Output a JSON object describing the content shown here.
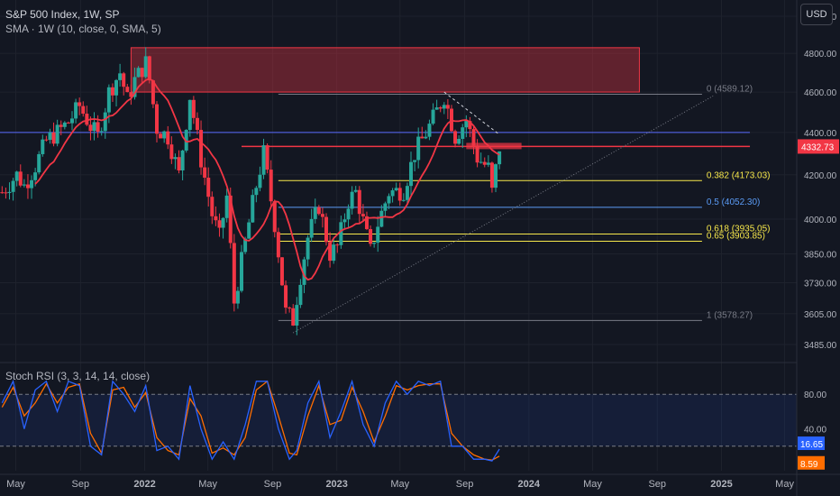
{
  "header": {
    "title": "S&P 500 Index, 1W, SP",
    "sma_label": "SMA · 1W (10, close, 0, SMA, 5)",
    "stoch_label": "Stoch RSI (3, 3, 14, 14, close)",
    "currency": "USD"
  },
  "colors": {
    "background": "#131722",
    "up": "#26a69a",
    "down": "#f23645",
    "sma": "#f23645",
    "fib_yellow": "#f7e84b",
    "fib_blue": "#5b9cf6",
    "fib_gray": "#787b86",
    "stoch_k": "#2962ff",
    "stoch_d": "#ff6d00"
  },
  "chart_data": {
    "type": "candlestick",
    "ylim": [
      3430,
      5090
    ],
    "y_ticks": [
      "5000.00",
      "4800.00",
      "4600.00",
      "4400.00",
      "4200.00",
      "4000.00",
      "3850.00",
      "3730.00",
      "3605.00",
      "3485.00"
    ],
    "y_tick_values": [
      5000,
      4800,
      4600,
      4400,
      4200,
      4000,
      3850,
      3730,
      3605,
      3485
    ],
    "x_ticks": [
      "May",
      "Sep",
      "2022",
      "May",
      "Sep",
      "2023",
      "May",
      "Sep",
      "2024",
      "May",
      "Sep",
      "2025",
      "May"
    ],
    "x_tick_dates": [
      "2021-05-01",
      "2021-09-01",
      "2022-01-01",
      "2022-05-01",
      "2022-09-01",
      "2023-01-01",
      "2023-05-01",
      "2023-09-01",
      "2024-01-01",
      "2024-05-01",
      "2024-09-01",
      "2025-01-01",
      "2025-05-01"
    ],
    "x_range": [
      "2021-04-01",
      "2025-05-24"
    ],
    "last_price": "4332.73",
    "last_price_value": 4332.73,
    "close_path": [
      [
        "2021-04-05",
        4120
      ],
      [
        "2021-05-03",
        4200
      ],
      [
        "2021-05-17",
        4150
      ],
      [
        "2021-06-07",
        4240
      ],
      [
        "2021-06-28",
        4360
      ],
      [
        "2021-07-19",
        4400
      ],
      [
        "2021-08-09",
        4450
      ],
      [
        "2021-08-30",
        4530
      ],
      [
        "2021-09-20",
        4430
      ],
      [
        "2021-10-04",
        4380
      ],
      [
        "2021-10-25",
        4600
      ],
      [
        "2021-11-15",
        4700
      ],
      [
        "2021-11-29",
        4560
      ],
      [
        "2021-12-13",
        4660
      ],
      [
        "2022-01-03",
        4750
      ],
      [
        "2022-01-10",
        4660
      ],
      [
        "2022-01-24",
        4420
      ],
      [
        "2022-02-14",
        4380
      ],
      [
        "2022-03-07",
        4200
      ],
      [
        "2022-03-28",
        4580
      ],
      [
        "2022-04-18",
        4270
      ],
      [
        "2022-05-09",
        4020
      ],
      [
        "2022-05-23",
        3920
      ],
      [
        "2022-06-06",
        4100
      ],
      [
        "2022-06-20",
        3650
      ],
      [
        "2022-07-11",
        3900
      ],
      [
        "2022-08-01",
        4150
      ],
      [
        "2022-08-15",
        4300
      ],
      [
        "2022-09-05",
        3980
      ],
      [
        "2022-09-26",
        3610
      ],
      [
        "2022-10-10",
        3580
      ],
      [
        "2022-10-24",
        3760
      ],
      [
        "2022-11-07",
        3920
      ],
      [
        "2022-11-28",
        4060
      ],
      [
        "2022-12-19",
        3850
      ],
      [
        "2023-01-02",
        3880
      ],
      [
        "2023-01-23",
        4080
      ],
      [
        "2023-02-06",
        4120
      ],
      [
        "2023-03-06",
        3860
      ],
      [
        "2023-03-20",
        3980
      ],
      [
        "2023-04-10",
        4120
      ],
      [
        "2023-05-08",
        4130
      ],
      [
        "2023-05-29",
        4300
      ],
      [
        "2023-06-26",
        4430
      ],
      [
        "2023-07-24",
        4580
      ],
      [
        "2023-08-14",
        4380
      ],
      [
        "2023-09-04",
        4460
      ],
      [
        "2023-09-25",
        4280
      ],
      [
        "2023-10-16",
        4230
      ],
      [
        "2023-10-23",
        4120
      ],
      [
        "2023-11-06",
        4330
      ]
    ],
    "zones": [
      {
        "from": "2021-12-06",
        "to": "2024-07-29",
        "high": 4830,
        "low": 4600,
        "color": "#f23645"
      }
    ],
    "horizontal_lines": [
      {
        "y": 4400,
        "from": "2021-04-01",
        "to": "2025-02-24",
        "color": "#5b6cff"
      },
      {
        "y": 4332.73,
        "from": "2022-07-04",
        "to": "2025-02-24",
        "color": "#f23645"
      }
    ],
    "trend_lines": [
      {
        "from": [
          "2022-10-10",
          3530
        ],
        "to": [
          "2024-12-16",
          4580
        ],
        "color": "#787b86",
        "dash": "1,2"
      },
      {
        "from": [
          "2023-07-24",
          4600
        ],
        "to": [
          "2023-11-06",
          4390
        ],
        "color": "#d1d4dc",
        "dash": "3,3"
      }
    ],
    "fib_levels": [
      {
        "label": "0 (4589.12)",
        "value": 4589.12,
        "color": "#787b86"
      },
      {
        "label": "0.382 (4173.03)",
        "value": 4173.03,
        "color": "#f7e84b"
      },
      {
        "label": "0.5 (4052.30)",
        "value": 4052.3,
        "color": "#5b9cf6"
      },
      {
        "label": "0.618 (3935.05)",
        "value": 3935.05,
        "color": "#f7e84b"
      },
      {
        "label": "0.65 (3903.85)",
        "value": 3903.85,
        "color": "#f7e84b"
      },
      {
        "label": "1 (3578.27)",
        "value": 3578.27,
        "color": "#787b86"
      }
    ],
    "fib_from": "2022-09-12",
    "fib_to": "2024-11-25",
    "sma": {
      "name": "SMA · 1W (10, close, 0, SMA, 5)",
      "period": 10
    },
    "stoch_rsi": {
      "ylim": [
        0,
        100
      ],
      "y_ticks": [
        "80.00",
        "40.00"
      ],
      "y_tick_values": [
        80,
        40
      ],
      "upper_band": 80,
      "lower_band": 20,
      "k_label": "16.65",
      "k_value": 16.65,
      "d_label": "8.59",
      "d_value": 8.59,
      "k_path": [
        [
          "2021-04-05",
          70
        ],
        [
          "2021-04-26",
          95
        ],
        [
          "2021-05-17",
          40
        ],
        [
          "2021-06-07",
          85
        ],
        [
          "2021-06-28",
          95
        ],
        [
          "2021-07-19",
          60
        ],
        [
          "2021-08-09",
          95
        ],
        [
          "2021-08-30",
          90
        ],
        [
          "2021-09-20",
          20
        ],
        [
          "2021-10-11",
          10
        ],
        [
          "2021-11-01",
          95
        ],
        [
          "2021-11-22",
          80
        ],
        [
          "2021-12-13",
          60
        ],
        [
          "2022-01-03",
          90
        ],
        [
          "2022-01-24",
          15
        ],
        [
          "2022-02-14",
          20
        ],
        [
          "2022-03-07",
          5
        ],
        [
          "2022-03-28",
          90
        ],
        [
          "2022-04-18",
          40
        ],
        [
          "2022-05-09",
          5
        ],
        [
          "2022-05-30",
          25
        ],
        [
          "2022-06-20",
          5
        ],
        [
          "2022-07-11",
          45
        ],
        [
          "2022-08-01",
          95
        ],
        [
          "2022-08-22",
          95
        ],
        [
          "2022-09-12",
          40
        ],
        [
          "2022-10-03",
          5
        ],
        [
          "2022-10-17",
          15
        ],
        [
          "2022-11-07",
          70
        ],
        [
          "2022-11-28",
          95
        ],
        [
          "2022-12-19",
          30
        ],
        [
          "2023-01-09",
          60
        ],
        [
          "2023-01-30",
          95
        ],
        [
          "2023-02-20",
          45
        ],
        [
          "2023-03-13",
          20
        ],
        [
          "2023-04-03",
          70
        ],
        [
          "2023-04-24",
          95
        ],
        [
          "2023-05-15",
          80
        ],
        [
          "2023-06-05",
          95
        ],
        [
          "2023-06-26",
          90
        ],
        [
          "2023-07-17",
          95
        ],
        [
          "2023-08-07",
          20
        ],
        [
          "2023-08-28",
          20
        ],
        [
          "2023-09-18",
          5
        ],
        [
          "2023-10-09",
          5
        ],
        [
          "2023-10-23",
          3
        ],
        [
          "2023-11-06",
          16.65
        ]
      ],
      "d_path": [
        [
          "2021-04-05",
          65
        ],
        [
          "2021-04-26",
          88
        ],
        [
          "2021-05-17",
          55
        ],
        [
          "2021-06-07",
          70
        ],
        [
          "2021-06-28",
          92
        ],
        [
          "2021-07-19",
          70
        ],
        [
          "2021-08-09",
          88
        ],
        [
          "2021-08-30",
          92
        ],
        [
          "2021-09-20",
          35
        ],
        [
          "2021-10-11",
          12
        ],
        [
          "2021-11-01",
          85
        ],
        [
          "2021-11-22",
          88
        ],
        [
          "2021-12-13",
          65
        ],
        [
          "2022-01-03",
          82
        ],
        [
          "2022-01-24",
          30
        ],
        [
          "2022-02-14",
          15
        ],
        [
          "2022-03-07",
          10
        ],
        [
          "2022-03-28",
          75
        ],
        [
          "2022-04-18",
          55
        ],
        [
          "2022-05-09",
          12
        ],
        [
          "2022-05-30",
          18
        ],
        [
          "2022-06-20",
          10
        ],
        [
          "2022-07-11",
          30
        ],
        [
          "2022-08-01",
          85
        ],
        [
          "2022-08-22",
          95
        ],
        [
          "2022-09-12",
          55
        ],
        [
          "2022-10-03",
          12
        ],
        [
          "2022-10-17",
          10
        ],
        [
          "2022-11-07",
          55
        ],
        [
          "2022-11-28",
          90
        ],
        [
          "2022-12-19",
          45
        ],
        [
          "2023-01-09",
          50
        ],
        [
          "2023-01-30",
          88
        ],
        [
          "2023-02-20",
          60
        ],
        [
          "2023-03-13",
          25
        ],
        [
          "2023-04-03",
          55
        ],
        [
          "2023-04-24",
          90
        ],
        [
          "2023-05-15",
          85
        ],
        [
          "2023-06-05",
          90
        ],
        [
          "2023-06-26",
          92
        ],
        [
          "2023-07-17",
          92
        ],
        [
          "2023-08-07",
          35
        ],
        [
          "2023-08-28",
          20
        ],
        [
          "2023-09-18",
          10
        ],
        [
          "2023-10-09",
          5
        ],
        [
          "2023-10-23",
          4
        ],
        [
          "2023-11-06",
          8.59
        ]
      ]
    }
  }
}
